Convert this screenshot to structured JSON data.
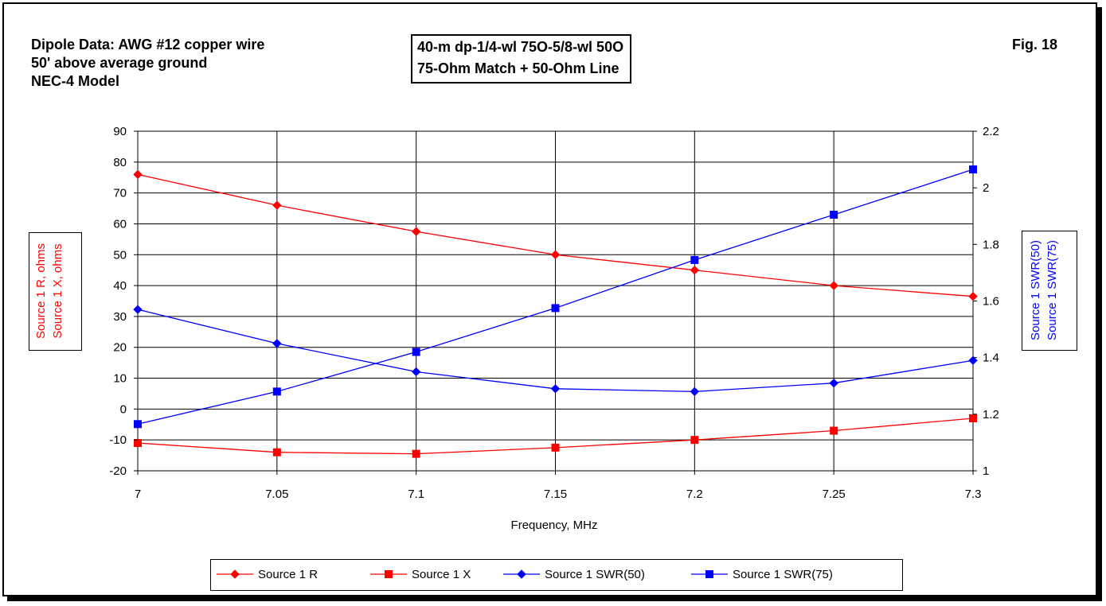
{
  "header": {
    "lines": [
      "Dipole Data:  AWG #12 copper wire",
      "50' above average ground",
      "NEC-4 Model"
    ],
    "title_lines": [
      "40-m dp-1/4-wl 75O-5/8-wl 50O",
      "75-Ohm Match + 50-Ohm Line"
    ],
    "fig": "Fig. 18"
  },
  "chart_data": {
    "type": "line",
    "title": "40-m dp-1/4-wl 75O-5/8-wl 50O / 75-Ohm Match + 50-Ohm Line",
    "xlabel": "Frequency, MHz",
    "x": [
      7,
      7.05,
      7.1,
      7.15,
      7.2,
      7.25,
      7.3
    ],
    "x_tick_labels": [
      "7",
      "7.05",
      "7.1",
      "7.15",
      "7.2",
      "7.25",
      "7.3"
    ],
    "xlim": [
      7,
      7.3
    ],
    "y_left": {
      "label_lines": [
        "Source 1 R,  ohms",
        "Source 1 X,  ohms"
      ],
      "ylim": [
        -20,
        90
      ],
      "ticks": [
        -20,
        -10,
        0,
        10,
        20,
        30,
        40,
        50,
        60,
        70,
        80,
        90
      ],
      "tick_labels": [
        "-20",
        "-10",
        "0",
        "10",
        "20",
        "30",
        "40",
        "50",
        "60",
        "70",
        "80",
        "90"
      ]
    },
    "y_right": {
      "label_lines": [
        "Source 1 SWR(50)",
        "Source 1 SWR(75)"
      ],
      "ylim": [
        1,
        2.2
      ],
      "ticks": [
        1,
        1.2,
        1.4,
        1.6,
        1.8,
        2,
        2.2
      ],
      "tick_labels": [
        "1",
        "1.2",
        "1.4",
        "1.6",
        "1.8",
        "2",
        "2.2"
      ]
    },
    "grid": true,
    "legend_position": "bottom",
    "series": [
      {
        "name": "Source 1 R",
        "axis": "left",
        "marker": "diamond",
        "color": "#ff0000",
        "values": [
          76,
          66,
          57.5,
          50,
          45,
          40,
          36.5
        ]
      },
      {
        "name": "Source 1 X",
        "axis": "left",
        "marker": "square",
        "color": "#ff0000",
        "values": [
          -11,
          -14,
          -14.5,
          -12.5,
          -10,
          -7,
          -3
        ]
      },
      {
        "name": "Source 1 SWR(50)",
        "axis": "right",
        "marker": "diamond",
        "color": "#0000ff",
        "values": [
          1.57,
          1.45,
          1.35,
          1.29,
          1.28,
          1.31,
          1.39
        ]
      },
      {
        "name": "Source 1 SWR(75)",
        "axis": "right",
        "marker": "square",
        "color": "#0000ff",
        "values": [
          1.165,
          1.28,
          1.42,
          1.575,
          1.745,
          1.905,
          2.065
        ]
      }
    ]
  }
}
